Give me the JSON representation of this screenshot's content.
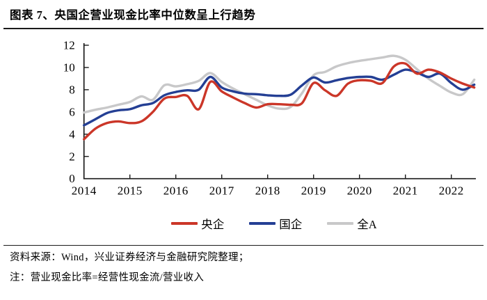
{
  "header": {
    "title": "图表 7、央国企营业现金比率中位数呈上行趋势"
  },
  "footer": {
    "source": "资料来源：Wind，兴业证券经济与金融研究院整理；",
    "note": "注：营业现金比率=经营性现金流/营业收入"
  },
  "legend": [
    {
      "id": "central-enterprises",
      "label": "央企",
      "color": "#cb3628"
    },
    {
      "id": "state-owned-enterprises",
      "label": "国企",
      "color": "#243f94"
    },
    {
      "id": "all-a-shares",
      "label": "全A",
      "color": "#c8c8c9"
    }
  ],
  "chart_data": {
    "type": "line",
    "title": "央国企营业现金比率中位数（%）",
    "xlabel": "",
    "ylabel": "",
    "ylim": [
      0,
      12
    ],
    "y_ticks": [
      0,
      2,
      4,
      6,
      8,
      10,
      12
    ],
    "x_tick_labels": [
      "2014",
      "2015",
      "2016",
      "2017",
      "2018",
      "2019",
      "2020",
      "2021",
      "2022"
    ],
    "grid": false,
    "legend_position": "bottom",
    "x": [
      2014.0,
      2014.25,
      2014.5,
      2014.75,
      2015.0,
      2015.25,
      2015.5,
      2015.75,
      2016.0,
      2016.25,
      2016.5,
      2016.75,
      2017.0,
      2017.25,
      2017.5,
      2017.75,
      2018.0,
      2018.25,
      2018.5,
      2018.75,
      2019.0,
      2019.25,
      2019.5,
      2019.75,
      2020.0,
      2020.25,
      2020.5,
      2020.75,
      2021.0,
      2021.25,
      2021.5,
      2021.75,
      2022.0,
      2022.25,
      2022.5
    ],
    "series": [
      {
        "id": "central-enterprises",
        "name": "央企",
        "color": "#cb3628",
        "values": [
          3.55,
          4.5,
          5.0,
          5.15,
          5.0,
          5.15,
          6.0,
          7.2,
          7.35,
          7.45,
          6.25,
          8.7,
          7.85,
          7.3,
          6.8,
          6.4,
          6.7,
          6.7,
          6.65,
          6.8,
          8.6,
          7.95,
          7.45,
          8.55,
          8.85,
          8.8,
          8.6,
          10.1,
          10.35,
          9.45,
          9.8,
          9.55,
          9.0,
          8.55,
          8.2
        ]
      },
      {
        "id": "state-owned-enterprises",
        "name": "国企",
        "color": "#243f94",
        "values": [
          4.8,
          5.35,
          5.9,
          6.15,
          6.25,
          6.6,
          6.8,
          7.5,
          7.8,
          7.95,
          8.0,
          9.15,
          8.2,
          7.85,
          7.65,
          7.6,
          7.5,
          7.45,
          7.55,
          8.4,
          9.1,
          8.65,
          8.85,
          9.05,
          9.15,
          9.15,
          8.9,
          9.35,
          9.8,
          9.55,
          9.15,
          9.45,
          8.6,
          8.0,
          8.45
        ]
      },
      {
        "id": "all-a-shares",
        "name": "全A",
        "color": "#c8c8c9",
        "values": [
          5.95,
          6.2,
          6.4,
          6.65,
          6.9,
          7.4,
          7.1,
          8.4,
          8.3,
          8.5,
          8.8,
          9.5,
          8.7,
          8.1,
          7.6,
          7.1,
          6.6,
          6.3,
          6.45,
          7.7,
          9.3,
          9.6,
          10.1,
          10.4,
          10.6,
          10.75,
          10.9,
          11.05,
          10.7,
          9.85,
          9.0,
          8.35,
          7.75,
          7.6,
          8.9
        ]
      }
    ]
  }
}
